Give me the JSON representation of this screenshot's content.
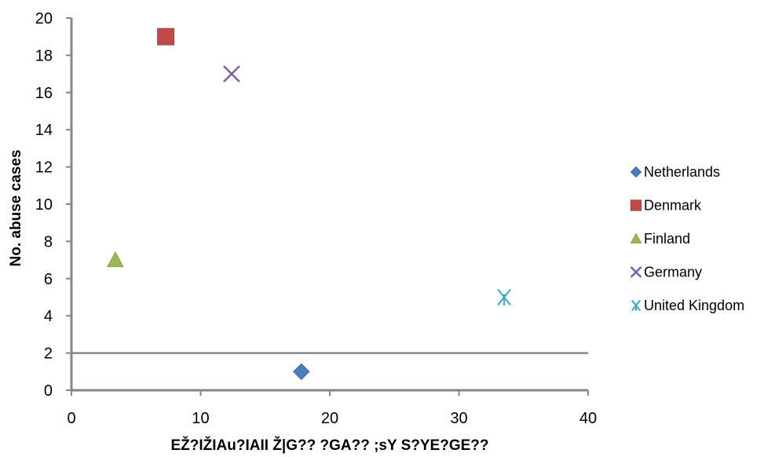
{
  "chart_data": {
    "type": "scatter",
    "xlabel": "EŽ?IŽIAu?IAII Ž|G?? ?GA?? ;sY S?YE?GE??",
    "ylabel": "No. abuse cases",
    "xlim": [
      0,
      40
    ],
    "ylim": [
      0,
      20
    ],
    "x_ticks": [
      "0",
      "10",
      "20",
      "30",
      "40"
    ],
    "y_ticks": [
      "0",
      "2",
      "4",
      "6",
      "8",
      "10",
      "12",
      "14",
      "16",
      "18",
      "20"
    ],
    "reference_line_y": 2,
    "legend_position": "right",
    "series": [
      {
        "name": "Netherlands",
        "marker": "diamond",
        "color": "#4a7ebb",
        "x": [
          17.8
        ],
        "y": [
          1
        ]
      },
      {
        "name": "Denmark",
        "marker": "square",
        "color": "#be4b48",
        "x": [
          7.3
        ],
        "y": [
          19
        ]
      },
      {
        "name": "Finland",
        "marker": "triangle",
        "color": "#98b954",
        "x": [
          3.4
        ],
        "y": [
          7
        ]
      },
      {
        "name": "Germany",
        "marker": "x",
        "color": "#7d60a0",
        "x": [
          12.4
        ],
        "y": [
          17
        ]
      },
      {
        "name": "United Kingdom",
        "marker": "star",
        "color": "#46aac5",
        "x": [
          33.5
        ],
        "y": [
          5
        ]
      }
    ]
  }
}
